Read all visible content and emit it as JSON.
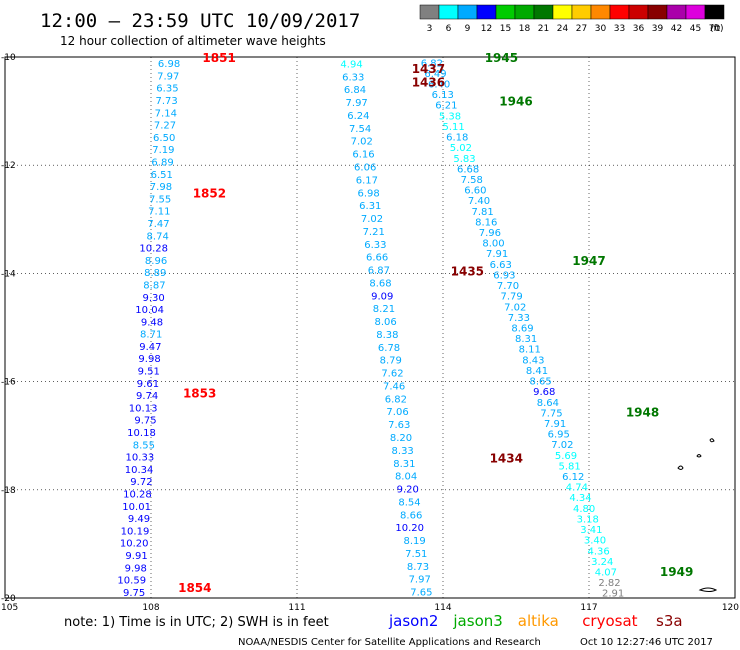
{
  "header": {
    "title": "12:00 – 23:59 UTC 10/09/2017",
    "subtitle": "12 hour collection of altimeter wave heights"
  },
  "legend": {
    "unit": "(ft)",
    "bins": [
      {
        "label": "3",
        "color": "#808080"
      },
      {
        "label": "6",
        "color": "#00ffff"
      },
      {
        "label": "9",
        "color": "#00aaff"
      },
      {
        "label": "12",
        "color": "#0000ff"
      },
      {
        "label": "15",
        "color": "#00cc00"
      },
      {
        "label": "18",
        "color": "#00aa00"
      },
      {
        "label": "21",
        "color": "#007700"
      },
      {
        "label": "24",
        "color": "#ffff00"
      },
      {
        "label": "27",
        "color": "#ffcc00"
      },
      {
        "label": "30",
        "color": "#ff8800"
      },
      {
        "label": "33",
        "color": "#ff0000"
      },
      {
        "label": "36",
        "color": "#cc0000"
      },
      {
        "label": "39",
        "color": "#880000"
      },
      {
        "label": "42",
        "color": "#aa00aa"
      },
      {
        "label": "45",
        "color": "#dd00dd"
      },
      {
        "label": "70",
        "color": "#000000"
      }
    ]
  },
  "map": {
    "lon_range": [
      105,
      120
    ],
    "lat_range": [
      -20,
      -10
    ],
    "lon_ticks": [
      "105",
      "108",
      "111",
      "114",
      "117",
      "120"
    ],
    "lat_ticks": [
      "-10",
      "-12",
      "-14",
      "-16",
      "-18",
      "-20"
    ]
  },
  "tracks": [
    {
      "start_lon": 108.6,
      "step_lon": -0.0167,
      "values": [
        "6.98",
        "7.97",
        "6.35",
        "7.73",
        "7.14",
        "7.27",
        "6.50",
        "7.19",
        "6.89",
        "6.51",
        "7.98",
        "7.55",
        "7.11",
        "7.47",
        "8.74",
        "10.28",
        "8.96",
        "8.89",
        "8.87",
        "9.30",
        "10.04",
        "9.48",
        "8.71",
        "9.47",
        "9.98",
        "9.51",
        "9.61",
        "9.74",
        "10.13",
        "9.75",
        "10.18",
        "8.55",
        "10.33",
        "10.34",
        "9.72",
        "10.28",
        "10.01",
        "9.49",
        "10.19",
        "10.20",
        "9.91",
        "9.98",
        "10.59",
        "9.75"
      ]
    },
    {
      "start_lon": 112.35,
      "step_lon": 0.035,
      "values": [
        "4.94",
        "6.33",
        "6.84",
        "7.97",
        "6.24",
        "7.54",
        "7.02",
        "6.16",
        "6.06",
        "6.17",
        "6.98",
        "6.31",
        "7.02",
        "7.21",
        "6.33",
        "6.66",
        "6.87",
        "8.68",
        "9.09",
        "8.21",
        "8.06",
        "8.38",
        "6.78",
        "8.79",
        "7.62",
        "7.46",
        "6.82",
        "7.06",
        "7.63",
        "8.20",
        "8.33",
        "8.31",
        "8.04",
        "9.20",
        "8.54",
        "8.66",
        "10.20",
        "8.19",
        "7.51",
        "8.73",
        "7.97",
        "7.65"
      ]
    },
    {
      "start_lon": 114.0,
      "step_lon": 0.0745,
      "values": [
        "6.82",
        "6.49",
        "6.40",
        "6.13",
        "6.21",
        "5.38",
        "5.11",
        "6.18",
        "5.02",
        "5.83",
        "6.68",
        "7.58",
        "6.60",
        "7.40",
        "7.81",
        "8.16",
        "7.96",
        "8.00",
        "7.91",
        "6.63",
        "6.93",
        "7.70",
        "7.79",
        "7.02",
        "7.33",
        "8.69",
        "8.31",
        "8.11",
        "8.43",
        "8.41",
        "8.65",
        "9.68",
        "8.64",
        "7.75",
        "7.91",
        "6.95",
        "7.02",
        "5.69",
        "5.81",
        "6.12",
        "4.74",
        "4.34",
        "4.80",
        "3.18",
        "3.41",
        "3.40",
        "4.36",
        "3.24",
        "4.07",
        "2.82",
        "2.91"
      ]
    }
  ],
  "time_labels": [
    {
      "text": "1851",
      "lon": 109.4,
      "lat": -10.0,
      "color": "#ff0000"
    },
    {
      "text": "1852",
      "lon": 109.2,
      "lat": -12.5,
      "color": "#ff0000"
    },
    {
      "text": "1853",
      "lon": 109.0,
      "lat": -16.2,
      "color": "#ff0000"
    },
    {
      "text": "1854",
      "lon": 108.9,
      "lat": -19.8,
      "color": "#ff0000"
    },
    {
      "text": "1437",
      "lon": 113.7,
      "lat": -10.2,
      "color": "#880000"
    },
    {
      "text": "1436",
      "lon": 113.7,
      "lat": -10.45,
      "color": "#880000"
    },
    {
      "text": "1435",
      "lon": 114.5,
      "lat": -13.95,
      "color": "#880000"
    },
    {
      "text": "1434",
      "lon": 115.3,
      "lat": -17.4,
      "color": "#880000"
    },
    {
      "text": "1945",
      "lon": 115.2,
      "lat": -10.0,
      "color": "#007700"
    },
    {
      "text": "1946",
      "lon": 115.5,
      "lat": -10.8,
      "color": "#007700"
    },
    {
      "text": "1947",
      "lon": 117.0,
      "lat": -13.75,
      "color": "#007700"
    },
    {
      "text": "1948",
      "lon": 118.1,
      "lat": -16.55,
      "color": "#007700"
    },
    {
      "text": "1949",
      "lon": 118.8,
      "lat": -19.5,
      "color": "#007700"
    }
  ],
  "footer": {
    "note": "note:  1) Time is in UTC;  2) SWH is in feet",
    "satellites": [
      {
        "name": "jason2",
        "color": "#0000ff"
      },
      {
        "name": "jason3",
        "color": "#00aa00"
      },
      {
        "name": "altika",
        "color": "#ff9900"
      },
      {
        "name": "cryosat",
        "color": "#ff0000"
      },
      {
        "name": "s3a",
        "color": "#880000"
      }
    ],
    "credit": "NOAA/NESDIS Center for Satellite Applications and Research",
    "timestamp": "Oct 10 12:27:46 UTC 2017"
  }
}
